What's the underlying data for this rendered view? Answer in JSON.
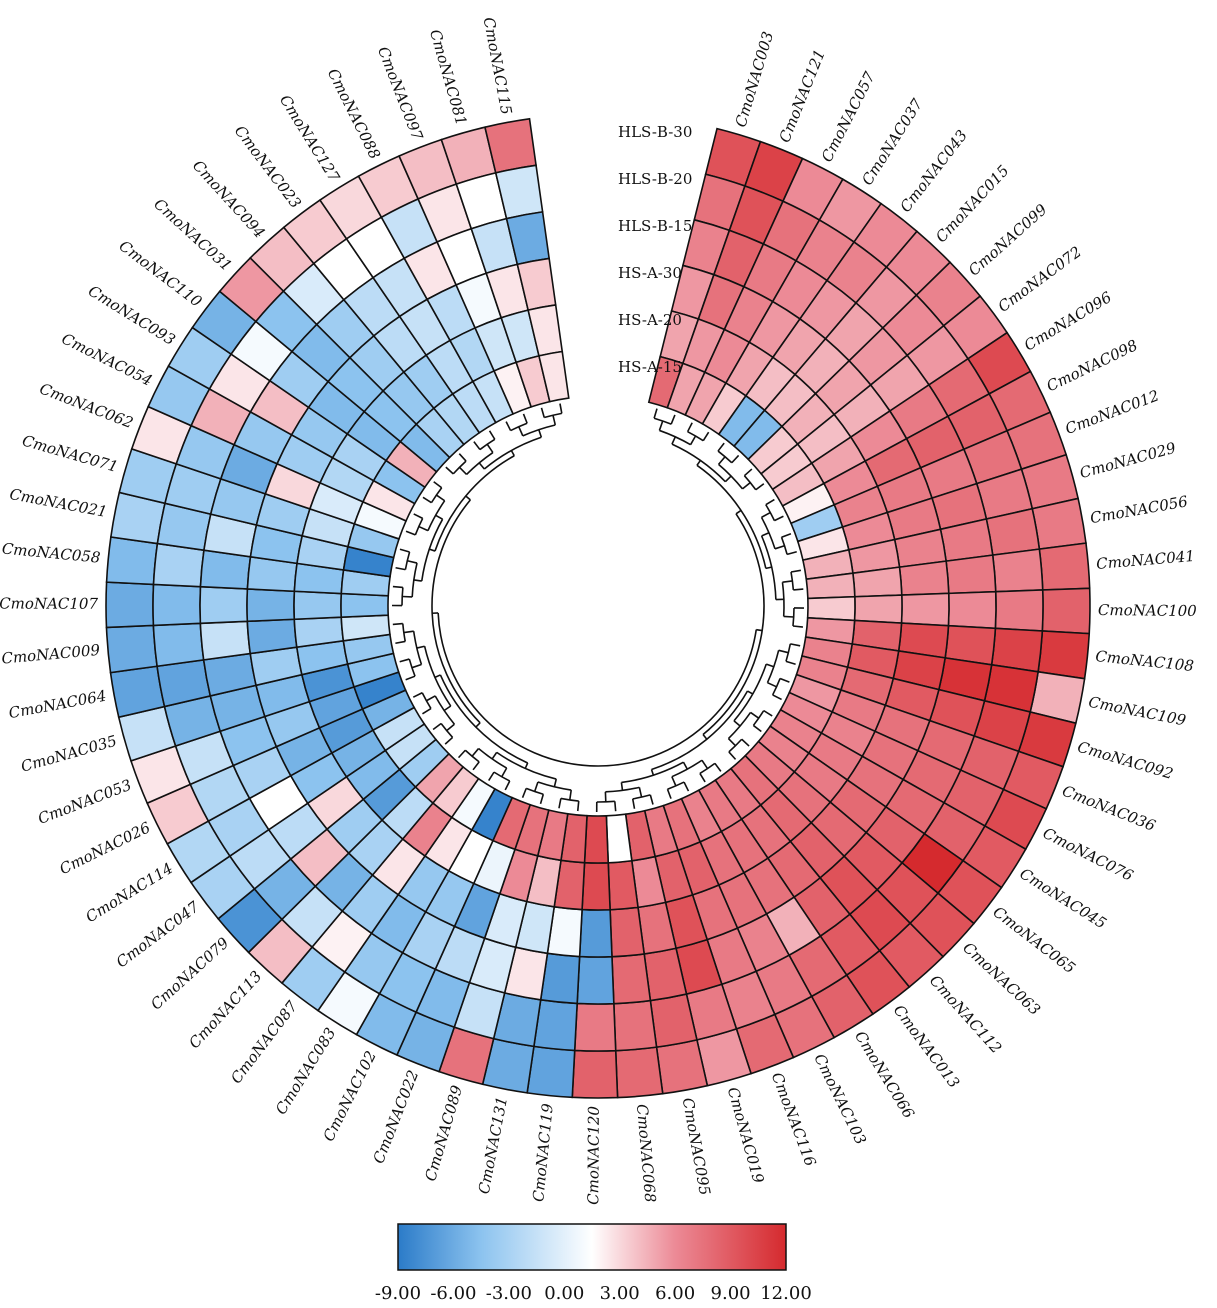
{
  "chart_data": {
    "type": "heatmap",
    "layout": "circular",
    "title": "",
    "tracks": [
      "HLS-B-30",
      "HLS-B-20",
      "HLS-B-15",
      "HS-A-30",
      "HS-A-20",
      "HS-A-15"
    ],
    "genes": [
      "CmoNAC003",
      "CmoNAC121",
      "CmoNAC057",
      "CmoNAC037",
      "CmoNAC043",
      "CmoNAC015",
      "CmoNAC099",
      "CmoNAC072",
      "CmoNAC096",
      "CmoNAC098",
      "CmoNAC012",
      "CmoNAC029",
      "CmoNAC056",
      "CmoNAC041",
      "CmoNAC100",
      "CmoNAC108",
      "CmoNAC109",
      "CmoNAC092",
      "CmoNAC036",
      "CmoNAC076",
      "CmoNAC045",
      "CmoNAC065",
      "CmoNAC063",
      "CmoNAC112",
      "CmoNAC013",
      "CmoNAC066",
      "CmoNAC103",
      "CmoNAC116",
      "CmoNAC019",
      "CmoNAC095",
      "CmoNAC068",
      "CmoNAC120",
      "CmoNAC119",
      "CmoNAC131",
      "CmoNAC089",
      "CmoNAC022",
      "CmoNAC102",
      "CmoNAC083",
      "CmoNAC087",
      "CmoNAC113",
      "CmoNAC079",
      "CmoNAC047",
      "CmoNAC114",
      "CmoNAC026",
      "CmoNAC053",
      "CmoNAC035",
      "CmoNAC064",
      "CmoNAC009",
      "CmoNAC107",
      "CmoNAC058",
      "CmoNAC021",
      "CmoNAC071",
      "CmoNAC062",
      "CmoNAC054",
      "CmoNAC093",
      "CmoNAC110",
      "CmoNAC031",
      "CmoNAC094",
      "CmoNAC023",
      "CmoNAC127",
      "CmoNAC088",
      "CmoNAC097",
      "CmoNAC081",
      "CmoNAC115"
    ],
    "values": [
      [
        9.5,
        7.5,
        6.5,
        5.5,
        5.0,
        8.0
      ],
      [
        10.5,
        9.5,
        8.5,
        7.5,
        5.5,
        5.0
      ],
      [
        6.0,
        7.5,
        7.0,
        6.5,
        6.0,
        5.0
      ],
      [
        5.5,
        6.5,
        6.0,
        5.5,
        5.0,
        3.5
      ],
      [
        6.0,
        6.5,
        5.5,
        5.0,
        4.0,
        -5.0
      ],
      [
        6.0,
        5.5,
        5.0,
        4.5,
        4.0,
        -5.0
      ],
      [
        6.5,
        6.0,
        5.5,
        5.0,
        4.5,
        3.5
      ],
      [
        6.0,
        5.5,
        5.0,
        4.5,
        4.0,
        3.5
      ],
      [
        10.0,
        8.0,
        7.0,
        6.0,
        5.0,
        4.0
      ],
      [
        8.0,
        8.5,
        8.5,
        8.0,
        6.0,
        2.0
      ],
      [
        7.5,
        7.5,
        7.0,
        7.0,
        6.5,
        -3.5
      ],
      [
        7.0,
        7.0,
        7.5,
        7.0,
        6.0,
        2.5
      ],
      [
        7.0,
        7.5,
        7.0,
        6.5,
        5.5,
        4.5
      ],
      [
        8.0,
        6.5,
        7.0,
        6.5,
        5.0,
        4.5
      ],
      [
        8.5,
        7.0,
        6.0,
        5.5,
        5.0,
        3.5
      ],
      [
        11.0,
        10.5,
        9.5,
        10.0,
        8.5,
        5.5
      ],
      [
        4.5,
        11.5,
        11.5,
        10.5,
        9.0,
        6.5
      ],
      [
        11.0,
        10.5,
        9.5,
        9.0,
        8.0,
        6.5
      ],
      [
        9.0,
        8.5,
        8.0,
        7.5,
        7.0,
        5.5
      ],
      [
        10.0,
        8.5,
        8.0,
        7.5,
        6.5,
        6.0
      ],
      [
        9.0,
        8.5,
        8.0,
        7.5,
        7.0,
        6.5
      ],
      [
        9.5,
        12.0,
        8.5,
        8.0,
        7.0,
        6.5
      ],
      [
        9.5,
        9.5,
        9.0,
        8.0,
        7.5,
        7.0
      ],
      [
        9.0,
        10.0,
        9.5,
        8.5,
        8.0,
        7.5
      ],
      [
        9.5,
        9.0,
        8.5,
        8.0,
        7.5,
        7.0
      ],
      [
        8.5,
        8.0,
        4.5,
        7.5,
        7.5,
        7.0
      ],
      [
        7.5,
        7.0,
        6.5,
        7.5,
        7.5,
        6.5
      ],
      [
        8.0,
        6.5,
        7.0,
        7.5,
        8.5,
        7.5
      ],
      [
        5.5,
        7.0,
        10.0,
        9.5,
        8.5,
        7.0
      ],
      [
        7.5,
        8.5,
        8.5,
        7.5,
        6.0,
        8.5
      ],
      [
        8.0,
        7.5,
        8.0,
        8.5,
        9.0,
        1.5
      ],
      [
        8.5,
        7.0,
        -6.5,
        -7.0,
        10.0,
        10.0
      ],
      [
        -6.5,
        -6.5,
        -7.0,
        1.0,
        8.5,
        8.5
      ],
      [
        -6.0,
        -6.0,
        2.5,
        -1.0,
        4.0,
        7.0
      ],
      [
        7.5,
        -1.5,
        -0.5,
        -0.5,
        6.0,
        7.5
      ],
      [
        -5.5,
        -5.0,
        -2.0,
        -6.5,
        0.5,
        8.0
      ],
      [
        -5.0,
        -4.5,
        -3.0,
        -4.0,
        1.5,
        -8.5
      ],
      [
        1.0,
        -4.0,
        -5.0,
        -4.0,
        2.5,
        1.0
      ],
      [
        -3.5,
        2.0,
        -3.5,
        2.5,
        6.5,
        3.5
      ],
      [
        4.0,
        -1.5,
        -5.5,
        -3.0,
        -2.0,
        5.0
      ],
      [
        -7.5,
        -5.5,
        4.0,
        -3.5,
        -7.0,
        -3.5
      ],
      [
        -3.0,
        -2.0,
        -2.0,
        3.0,
        -5.0,
        -1.5
      ],
      [
        -2.5,
        -3.0,
        1.5,
        -4.5,
        -5.5,
        -1.5
      ],
      [
        3.5,
        -2.5,
        -3.0,
        -5.5,
        -7.0,
        -5.5
      ],
      [
        2.5,
        -1.5,
        -4.5,
        -4.0,
        -6.5,
        -8.5
      ],
      [
        -1.5,
        -5.5,
        -5.5,
        -5.0,
        -7.5,
        -4.5
      ],
      [
        -6.5,
        -6.5,
        -6.0,
        -3.5,
        -4.5,
        -4.0
      ],
      [
        -6.0,
        -5.0,
        -1.5,
        -6.0,
        -3.0,
        -1.0
      ],
      [
        -6.0,
        -5.0,
        -3.5,
        -5.5,
        -4.0,
        -4.5
      ],
      [
        -5.0,
        -3.0,
        -5.0,
        -4.0,
        -4.5,
        -3.5
      ],
      [
        -3.0,
        -4.0,
        -1.5,
        -4.5,
        -3.0,
        -8.5
      ],
      [
        -3.5,
        -3.5,
        -4.0,
        -3.5,
        -1.5,
        -4.0
      ],
      [
        2.5,
        -4.0,
        -6.0,
        3.0,
        -0.5,
        1.0
      ],
      [
        -4.0,
        4.5,
        -4.0,
        -3.5,
        -2.5,
        2.5
      ],
      [
        -3.5,
        2.5,
        4.0,
        -4.0,
        -3.0,
        -4.5
      ],
      [
        -5.5,
        1.0,
        -3.5,
        -5.0,
        -5.0,
        4.5
      ],
      [
        5.5,
        -4.5,
        -5.0,
        -4.5,
        -4.5,
        -5.0
      ],
      [
        4.0,
        -0.5,
        -3.5,
        -3.5,
        -4.0,
        -3.0
      ],
      [
        3.5,
        1.5,
        -2.0,
        -2.0,
        -3.5,
        -2.5
      ],
      [
        3.0,
        1.5,
        -1.5,
        -1.5,
        -2.0,
        -2.0
      ],
      [
        3.5,
        -1.5,
        2.5,
        -2.0,
        -2.5,
        -1.5
      ],
      [
        4.0,
        2.5,
        1.5,
        1.0,
        -1.0,
        2.0
      ],
      [
        4.5,
        1.5,
        -1.5,
        2.5,
        -1.0,
        3.5
      ],
      [
        7.5,
        -1.0,
        -6.0,
        3.5,
        2.5,
        2.5
      ]
    ],
    "color_scale": {
      "min": -9.0,
      "max": 12.0,
      "stops": [
        {
          "value": -9.0,
          "color": "#2b7bc8"
        },
        {
          "value": -4.5,
          "color": "#8cc3ef"
        },
        {
          "value": 1.5,
          "color": "#ffffff"
        },
        {
          "value": 6.0,
          "color": "#ec8a96"
        },
        {
          "value": 12.0,
          "color": "#d52a2e"
        }
      ],
      "tick_labels": [
        "-9.00",
        "-6.00",
        "-3.00",
        "0.00",
        "3.00",
        "6.00",
        "9.00",
        "12.00"
      ]
    },
    "dendrogram": true
  }
}
